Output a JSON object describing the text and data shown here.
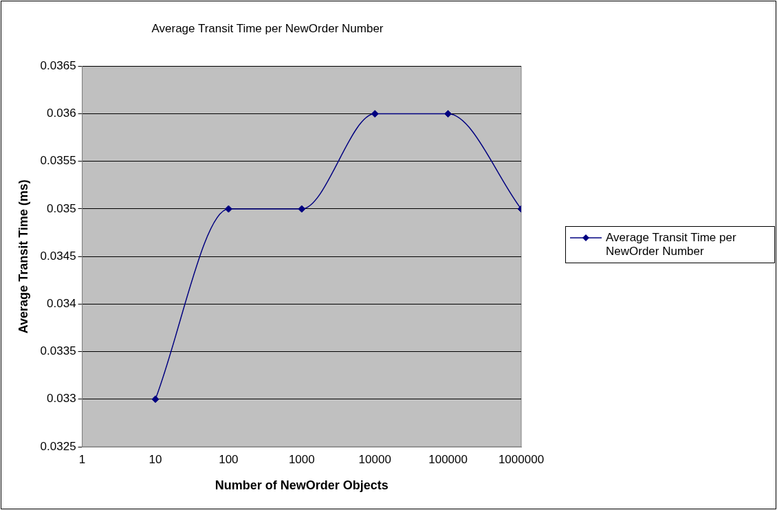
{
  "chart_data": {
    "type": "line",
    "title": "Average Transit Time per NewOrder Number",
    "xlabel": "Number of NewOrder Objects",
    "ylabel": "Average Transit Time (ms)",
    "x": [
      10,
      100,
      1000,
      10000,
      100000,
      1000000
    ],
    "series": [
      {
        "name": "Average Transit Time per NewOrder Number",
        "color": "#000080",
        "values": [
          0.033,
          0.035,
          0.035,
          0.036,
          0.036,
          0.035
        ]
      }
    ],
    "xlim": [
      1,
      1000000
    ],
    "xticks": [
      1,
      10,
      100,
      1000,
      10000,
      100000,
      1000000
    ],
    "ylim": [
      0.0325,
      0.0365
    ],
    "yticks": [
      0.0325,
      0.033,
      0.0335,
      0.034,
      0.0345,
      0.035,
      0.0355,
      0.036,
      0.0365
    ],
    "log": "x",
    "grid": "y",
    "legend": "right",
    "marker": "diamond"
  }
}
